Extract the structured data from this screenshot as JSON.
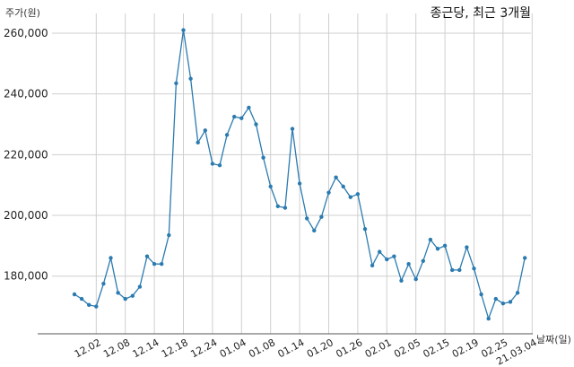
{
  "chart_data": {
    "type": "line",
    "title": "종근당, 최근 3개월",
    "ylabel": "주가(원)",
    "xlabel": "날짜(일)",
    "ylim": [
      161000,
      266500
    ],
    "grid": true,
    "y_ticks": [
      180000,
      200000,
      220000,
      240000,
      260000
    ],
    "y_tick_labels": [
      "180,000",
      "200,000",
      "220,000",
      "240,000",
      "260,000"
    ],
    "x_tick_labels": [
      "12.02",
      "12.08",
      "12.14",
      "12.18",
      "12.24",
      "01.04",
      "01.08",
      "01.14",
      "01.20",
      "01.26",
      "02.01",
      "02.05",
      "02.15",
      "02.19",
      "02.25",
      "21.03.04"
    ],
    "x_tick_indices": [
      3,
      7,
      11,
      15,
      19,
      23,
      27,
      31,
      35,
      39,
      43,
      47,
      51,
      55,
      59,
      63
    ],
    "series": [
      {
        "color": "#2b7bb0",
        "values": [
          174000,
          172500,
          170500,
          170000,
          177500,
          186000,
          174500,
          172500,
          173500,
          176500,
          186500,
          184000,
          184000,
          193500,
          243500,
          261000,
          245000,
          224000,
          228000,
          217000,
          216500,
          226500,
          232500,
          232000,
          235500,
          230000,
          219000,
          209500,
          203000,
          202500,
          228500,
          210500,
          199000,
          195000,
          199500,
          207500,
          212500,
          209500,
          206000,
          207000,
          195500,
          183500,
          188000,
          185500,
          186500,
          178500,
          184000,
          179000,
          185000,
          192000,
          189000,
          190000,
          182000,
          182000,
          189500,
          182500,
          174000,
          166000,
          172500,
          171000,
          171500,
          174500,
          186000
        ]
      }
    ]
  }
}
